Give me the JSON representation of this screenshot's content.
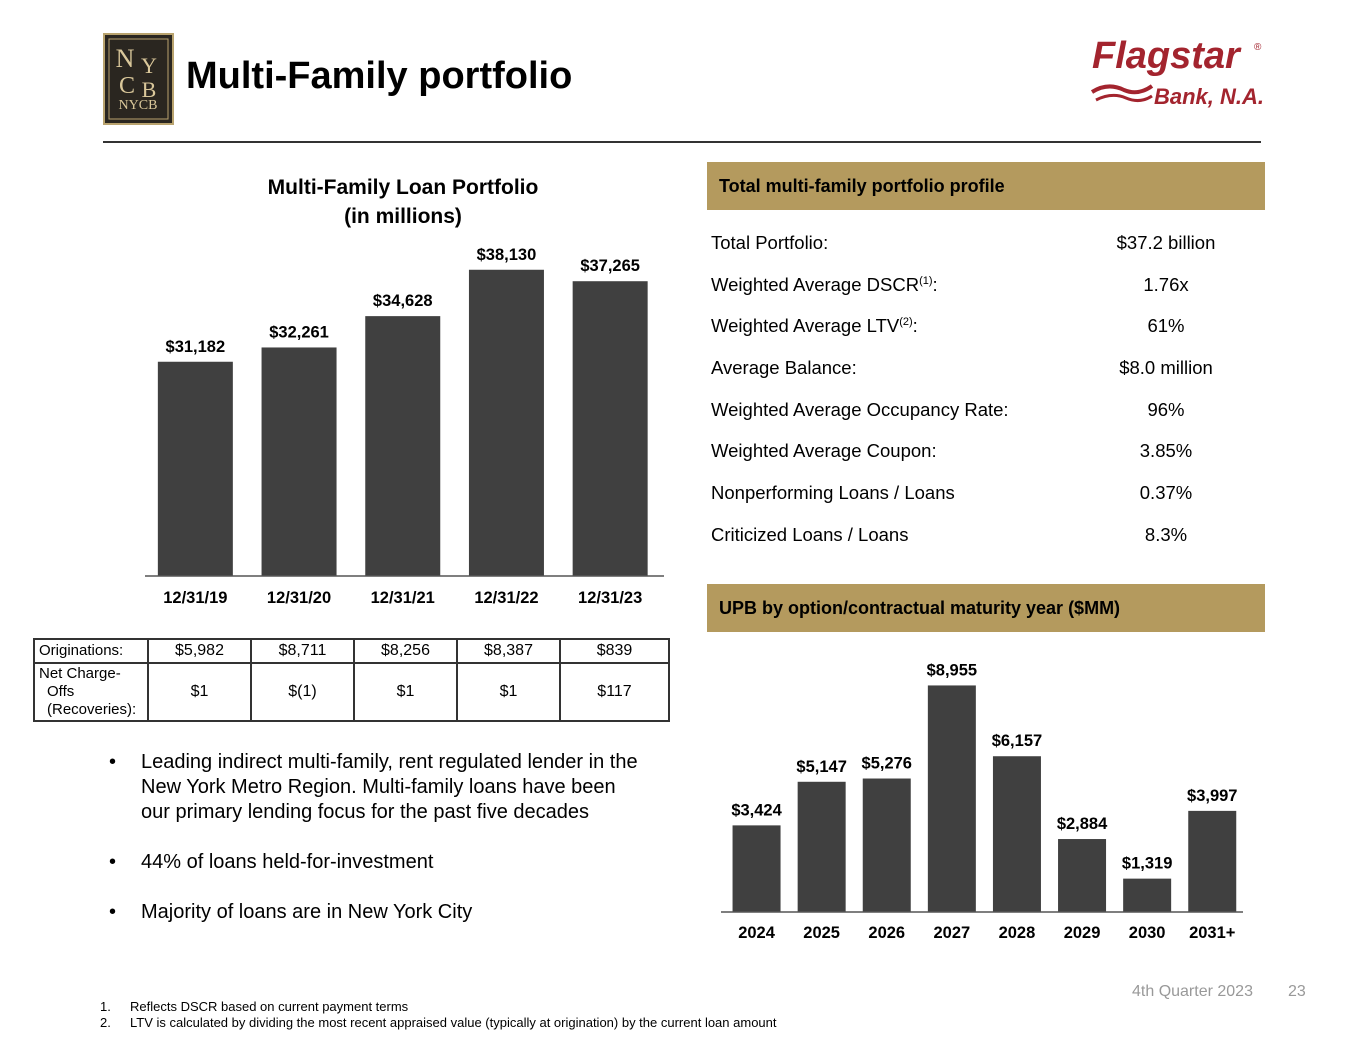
{
  "title": "Multi-Family portfolio",
  "logos": {
    "left": "NYCB",
    "right_brand": "Flagstar",
    "right_sub": "Bank, N.A."
  },
  "colors": {
    "bar": "#404040",
    "header_band": "#b49a5e",
    "flagstar_red": "#a3242e",
    "logo_gold": "#b9a36e"
  },
  "chart_data": [
    {
      "type": "bar",
      "title": "Multi-Family Loan Portfolio",
      "subtitle": "(in millions)",
      "categories": [
        "12/31/19",
        "12/31/20",
        "12/31/21",
        "12/31/22",
        "12/31/23"
      ],
      "values": [
        31182,
        32261,
        34628,
        38130,
        37265
      ],
      "labels": [
        "$31,182",
        "$32,261",
        "$34,628",
        "$38,130",
        "$37,265"
      ],
      "xlabel": "",
      "ylabel": "",
      "ylim": [
        15000,
        40000
      ]
    },
    {
      "type": "bar",
      "title": "UPB by option/contractual maturity year ($MM)",
      "categories": [
        "2024",
        "2025",
        "2026",
        "2027",
        "2028",
        "2029",
        "2030",
        "2031+"
      ],
      "values": [
        3424,
        5147,
        5276,
        8955,
        6157,
        2884,
        1319,
        3997
      ],
      "labels": [
        "$3,424",
        "$5,147",
        "$5,276",
        "$8,955",
        "$6,157",
        "$2,884",
        "$1,319",
        "$3,997"
      ],
      "xlabel": "",
      "ylabel": "",
      "ylim": [
        0,
        10000
      ]
    }
  ],
  "loan_table": {
    "originations_label": "Originations:",
    "originations": [
      "$5,982",
      "$8,711",
      "$8,256",
      "$8,387",
      "$839"
    ],
    "nco_label_1": "Net Charge-",
    "nco_label_2": "Offs",
    "nco_label_3": "(Recoveries):",
    "nco": [
      "$1",
      "$(1)",
      "$1",
      "$1",
      "$117"
    ]
  },
  "bullets": [
    "Leading indirect multi-family, rent regulated lender in the New York Metro Region. Multi-family loans have been our primary lending focus for the past five decades",
    "44% of loans held-for-investment",
    "Majority of loans are in New York City"
  ],
  "bullet_glyph": "•",
  "profile": {
    "header": "Total multi-family portfolio profile",
    "rows": [
      {
        "label": "Total Portfolio:",
        "value": "$37.2 billion"
      },
      {
        "label": "Weighted Average DSCR",
        "sup": "(1)",
        "suffix": ":",
        "value": "1.76x"
      },
      {
        "label": "Weighted Average LTV",
        "sup": "(2)",
        "suffix": ":",
        "value": "61%"
      },
      {
        "label": "Average Balance:",
        "value": "$8.0 million"
      },
      {
        "label": "Weighted Average Occupancy Rate:",
        "value": "96%"
      },
      {
        "label": "Weighted Average Coupon:",
        "value": "3.85%"
      },
      {
        "label": "Nonperforming Loans / Loans",
        "value": "0.37%"
      },
      {
        "label": "Criticized Loans / Loans",
        "value": "8.3%"
      }
    ]
  },
  "maturity_header": "UPB by option/contractual maturity year  ($MM)",
  "footer": {
    "period": "4th Quarter 2023",
    "page": "23"
  },
  "footnotes": [
    {
      "num": "1.",
      "text": "Reflects DSCR based on current payment terms"
    },
    {
      "num": "2.",
      "text": "LTV is calculated by dividing the most recent appraised value (typically at origination) by the current loan amount"
    }
  ]
}
